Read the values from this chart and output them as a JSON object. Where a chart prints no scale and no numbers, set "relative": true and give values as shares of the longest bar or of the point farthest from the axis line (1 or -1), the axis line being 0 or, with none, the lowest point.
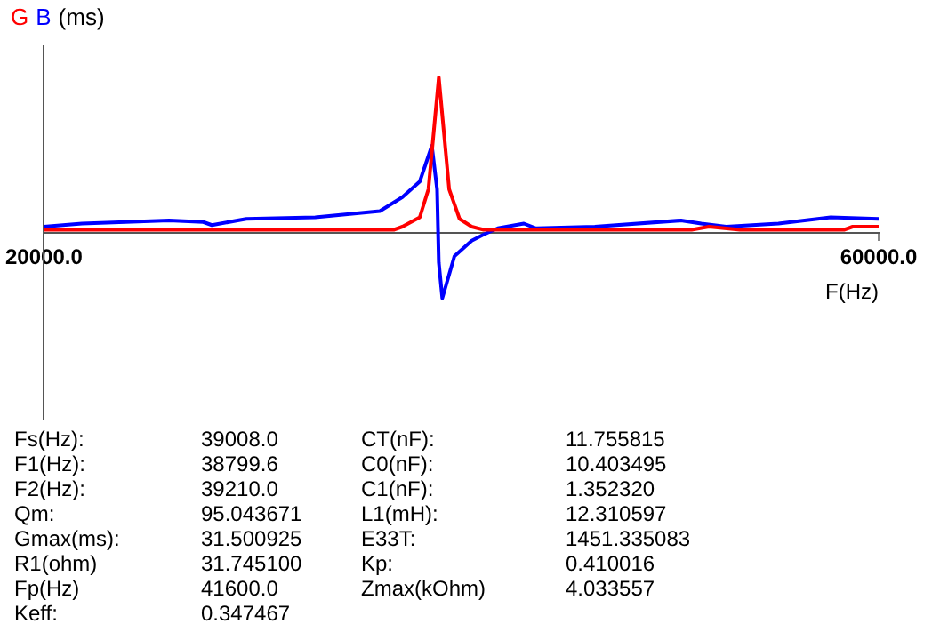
{
  "chart_data": {
    "type": "line",
    "relative": true,
    "ylabel": "(ms)",
    "xlabel": "F(Hz)",
    "legend": "top left",
    "grid": false,
    "marker": "none",
    "line_style": "solid",
    "xlim": [
      20000,
      60000
    ],
    "xticks": [
      {
        "value": 20000,
        "label": "20000.0"
      },
      {
        "value": 60000,
        "label": "60000.0"
      }
    ],
    "series": [
      {
        "name": "G",
        "color": "#ff0000",
        "x": [
          20000,
          27635,
          36763,
          37179,
          38009,
          38424,
          38673,
          38922,
          39171,
          39420,
          39917,
          40498,
          41079,
          44233,
          51038,
          51868,
          53362,
          58341,
          58755,
          60000
        ],
        "values": [
          0.02,
          0.02,
          0.02,
          0.04,
          0.1,
          0.28,
          0.64,
          1,
          0.64,
          0.28,
          0.09,
          0.04,
          0.02,
          0.02,
          0.02,
          0.04,
          0.02,
          0.02,
          0.04,
          0.04
        ]
      },
      {
        "name": "B",
        "color": "#0000ff",
        "x": [
          20000,
          21826,
          26000,
          27635,
          28050,
          29700,
          33000,
          36100,
          37180,
          38010,
          38590,
          38840,
          38922,
          39090,
          39670,
          40500,
          41080,
          41750,
          43000,
          43580,
          46400,
          50530,
          51500,
          52700,
          55200,
          57700,
          60000
        ],
        "values": [
          0.04,
          0.06,
          0.08,
          0.07,
          0.05,
          0.09,
          0.1,
          0.14,
          0.23,
          0.33,
          0.56,
          0.28,
          -0.19,
          -0.42,
          -0.15,
          -0.05,
          -0.01,
          0.03,
          0.06,
          0.03,
          0.04,
          0.08,
          0.06,
          0.04,
          0.06,
          0.1,
          0.09
        ]
      }
    ],
    "annotations": [
      "Fs(Hz):",
      "39008.0",
      "CT(nF):",
      "11.755815",
      "F1(Hz):",
      "38799.6",
      "C0(nF):",
      "10.403495",
      "F2(Hz):",
      "39210.0",
      "C1(nF):",
      "1.352320",
      "Qm:",
      "95.043671",
      "L1(mH):",
      "12.310597",
      "Gmax(ms):",
      "31.500925",
      "E33T:",
      "1451.335083",
      "R1(ohm)",
      "31.745100",
      "Kp:",
      "0.410016",
      "Fp(Hz)",
      "41600.0",
      "Zmax(kOhm)",
      "4.033557",
      "Keff:",
      "0.347467"
    ]
  }
}
